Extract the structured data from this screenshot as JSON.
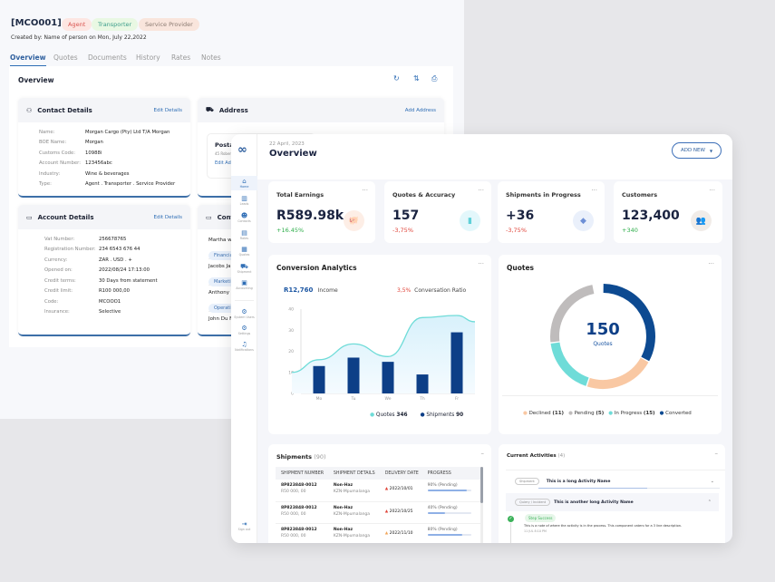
{
  "back": {
    "code": "[MCO001]",
    "tags": [
      {
        "label": "Agent",
        "bg": "#fde6e2",
        "fg": "#d9534f"
      },
      {
        "label": "Transporter",
        "bg": "#e9f8e3",
        "fg": "#3b9d8a"
      },
      {
        "label": "Service Provider",
        "bg": "#f9e5dc",
        "fg": "#8b7b72"
      }
    ],
    "created": "Created by: Name of person on Mon, July 22,2022",
    "tabs": [
      "Overview",
      "Quotes",
      "Documents",
      "History",
      "Rates",
      "Notes"
    ],
    "overview_title": "Overview",
    "contact": {
      "title": "Contact Details",
      "link": "Edit Details",
      "rows": [
        [
          "Name:",
          "Morgan Cargo (Pty) Ltd T/A Morgan"
        ],
        [
          "BOE Name:",
          "Morgan"
        ],
        [
          "Customs Code:",
          "10988i"
        ],
        [
          "Account Number:",
          "123456abc"
        ],
        [
          "Industry:",
          "Wine & beverages"
        ],
        [
          "Type:",
          "Agent . Transporter . Service Provider"
        ]
      ]
    },
    "address": {
      "title": "Address",
      "link": "Add Address",
      "postal": "Postal",
      "line": "45 Rober",
      "edit": "Edit Add"
    },
    "account": {
      "title": "Account Details",
      "link": "Edit Details",
      "rows": [
        [
          "Vat Number:",
          "256678765"
        ],
        [
          "Registration Number:",
          "234 6543 676 44"
        ],
        [
          "Currency:",
          "ZAR . USD . +"
        ],
        [
          "Opened on:",
          "2022/08/24  17:13:00"
        ],
        [
          "Credit terms:",
          "30 Days from statement"
        ],
        [
          "Credit limit:",
          "R100 000,00"
        ],
        [
          "Code:",
          "MCOOO1"
        ],
        [
          "Insurance:",
          "Selective"
        ]
      ]
    },
    "contacts": {
      "title": "Conta",
      "people": [
        {
          "name": "Martha w",
          "role": "Financia"
        },
        {
          "name": "Jacobs Ja",
          "role": "Marketi"
        },
        {
          "name": "Anthony",
          "role": "Operati"
        },
        {
          "name": "John Du F",
          "role": ""
        }
      ]
    }
  },
  "sidebar": {
    "items": [
      {
        "label": "Home",
        "icon": "home-icon",
        "glyph": "⌂"
      },
      {
        "label": "Leads",
        "icon": "leads-icon",
        "glyph": "▥"
      },
      {
        "label": "Contacts",
        "icon": "contacts-icon",
        "glyph": "☻"
      },
      {
        "label": "Rates",
        "icon": "rates-icon",
        "glyph": "▤"
      },
      {
        "label": "Quotes",
        "icon": "quotes-icon",
        "glyph": "▦"
      },
      {
        "label": "Shipment",
        "icon": "truck-icon",
        "glyph": "⛟"
      },
      {
        "label": "Accounting",
        "icon": "accounting-icon",
        "glyph": "▣"
      },
      {
        "label": "System Users",
        "icon": "system-users-icon",
        "glyph": "⚙"
      },
      {
        "label": "Settings",
        "icon": "settings-icon",
        "glyph": "⚙"
      },
      {
        "label": "Notifications",
        "icon": "bell-icon",
        "glyph": "♫"
      }
    ],
    "signout": "Sign out"
  },
  "header": {
    "date": "22 April, 2023",
    "title": "Overview",
    "add_new": "ADD NEW"
  },
  "stats": [
    {
      "title": "Total Earnings",
      "value": "R589.98k",
      "delta": "+16.45%",
      "delta_color": "#2fae4b",
      "icon": "piggy-bank-icon",
      "glyph": "🐖",
      "icon_bg": "#fdeee6",
      "icon_fg": "#e0855a"
    },
    {
      "title": "Quotes & Accuracy",
      "value": "157",
      "delta": "-3,75%",
      "delta_color": "#e0453a",
      "icon": "document-icon",
      "glyph": "▮",
      "icon_bg": "#e3f7fb",
      "icon_fg": "#5fd0d8"
    },
    {
      "title": "Shipments in Progress",
      "value": "+36",
      "delta": "-3,75%",
      "delta_color": "#e0453a",
      "icon": "box-icon",
      "glyph": "◆",
      "icon_bg": "#eaf0fb",
      "icon_fg": "#6d8fd6"
    },
    {
      "title": "Customers",
      "value": "123,400",
      "delta": "+340",
      "delta_color": "#2fae4b",
      "icon": "users-icon",
      "glyph": "👥",
      "icon_bg": "#f1ece8",
      "icon_fg": "#b7958a"
    }
  ],
  "conversion": {
    "title": "Conversion Analytics",
    "income_value": "R12,760",
    "income_label": "Income",
    "ratio_value": "3,5%",
    "ratio_label": "Conversation Ratio",
    "legend": [
      {
        "name": "Quotes",
        "count": "346",
        "color": "#6fdcd8"
      },
      {
        "name": "Shipments",
        "count": "90",
        "color": "#0d3f87"
      }
    ]
  },
  "quotes": {
    "title": "Quotes",
    "total": "150",
    "total_label": "Quotes",
    "legend": [
      {
        "label": "Declined",
        "count": "(11)",
        "color": "#f9c8a3"
      },
      {
        "label": "Pending",
        "count": "(5)",
        "color": "#bfbcbc"
      },
      {
        "label": "In Progress",
        "count": "(15)",
        "color": "#6fdcd8"
      },
      {
        "label": "Converted",
        "count": "",
        "color": "#0d4a91"
      }
    ]
  },
  "chart_data": [
    {
      "type": "bar",
      "title": "Conversion Analytics",
      "categories": [
        "Mo",
        "Tu",
        "We",
        "Th",
        "Fr"
      ],
      "ylim": [
        0,
        40
      ],
      "yticks": [
        0,
        10,
        20,
        30,
        40
      ],
      "grid": false,
      "series": [
        {
          "name": "Shipments",
          "type": "bar",
          "values": [
            13,
            17,
            15,
            9,
            29
          ]
        },
        {
          "name": "Quotes",
          "type": "area",
          "values": [
            16,
            23.5,
            17.5,
            36,
            37
          ]
        }
      ]
    },
    {
      "type": "pie",
      "title": "Quotes",
      "categories": [
        "Converted",
        "Declined",
        "In Progress",
        "Pending"
      ],
      "share_percent": [
        33,
        22,
        18,
        24
      ]
    }
  ],
  "shipments": {
    "title": "Shipments",
    "count": "(90)",
    "columns": [
      "SHIPMENT NUMBER",
      "SHIPMENT DETAILS",
      "DELIVERY DATE",
      "PROGRESS"
    ],
    "rows": [
      {
        "num": "8P823848-0012",
        "amt": "R50 000, 00",
        "type": "Non-Haz",
        "region": "KZN-Mpumalanga",
        "date": "2022/10/01",
        "warn": "#e0453a",
        "progress": "90% (Pending)",
        "pct": 90
      },
      {
        "num": "8P823848-0012",
        "amt": "R50 000, 00",
        "type": "Non-Haz",
        "region": "KZN-Mpumalanga",
        "date": "2022/10/25",
        "warn": "#e0453a",
        "progress": "40% (Pending)",
        "pct": 40
      },
      {
        "num": "8P823848-0012",
        "amt": "R50 000, 00",
        "type": "Non-Haz",
        "region": "KZN-Mpumalanga",
        "date": "2022/11/10",
        "warn": "#f2a65a",
        "progress": "80% (Pending)",
        "pct": 80
      }
    ]
  },
  "activities": {
    "title": "Current Activities",
    "count": "(4)",
    "items": [
      {
        "tag": "Shipment",
        "name": "This is a long Activity Name"
      },
      {
        "tag": "Quiery / Incident",
        "name": "This is another long Activity Name"
      }
    ],
    "step": {
      "status": "Step Success",
      "desc": "This is a note of where the activity is in the process. This component caters for a 3 line description.",
      "time": "11 JUL 8:10 PM"
    }
  }
}
